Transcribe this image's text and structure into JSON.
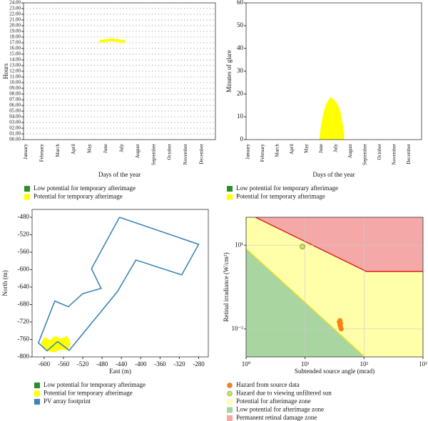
{
  "chart_data": [
    {
      "type": "scatter",
      "marker": "square",
      "xlabel": "Days of the year",
      "ylabel": "Hours",
      "categories": [
        "January",
        "February",
        "March",
        "April",
        "May",
        "June",
        "July",
        "August",
        "September",
        "October",
        "November",
        "December"
      ],
      "xlim": [
        0,
        12
      ],
      "ylim": [
        0,
        24
      ],
      "yticks": [
        {
          "value": 0,
          "label": "00.00"
        },
        {
          "value": 1,
          "label": "01.00"
        },
        {
          "value": 2,
          "label": "02.00"
        },
        {
          "value": 3,
          "label": "03.00"
        },
        {
          "value": 4,
          "label": "04.00"
        },
        {
          "value": 5,
          "label": "05.00"
        },
        {
          "value": 6,
          "label": "06.00"
        },
        {
          "value": 7,
          "label": "07.00"
        },
        {
          "value": 8,
          "label": "08.00"
        },
        {
          "value": 9,
          "label": "09.00"
        },
        {
          "value": 10,
          "label": "10.00"
        },
        {
          "value": 11,
          "label": "11.00"
        },
        {
          "value": 12,
          "label": "12.00"
        },
        {
          "value": 13,
          "label": "13.00"
        },
        {
          "value": 14,
          "label": "14.00"
        },
        {
          "value": 15,
          "label": "15.00"
        },
        {
          "value": 16,
          "label": "16.00"
        },
        {
          "value": 17,
          "label": "17.00"
        },
        {
          "value": 18,
          "label": "18.00"
        },
        {
          "value": 19,
          "label": "19.00"
        },
        {
          "value": 20,
          "label": "20.00"
        },
        {
          "value": 21,
          "label": "21.00"
        },
        {
          "value": 22,
          "label": "22.00"
        },
        {
          "value": 23,
          "label": "23.00"
        },
        {
          "value": 24,
          "label": "24.00"
        }
      ],
      "grid": "dots",
      "series": [
        {
          "name": "Low potential for temporary afterimage",
          "color": "#2e8b2e",
          "x": [],
          "y": []
        },
        {
          "name": "Potential for temporary afterimage",
          "color": "#ffff00",
          "x": [
            4.8,
            4.9,
            5.0,
            5.1,
            5.2,
            5.3,
            5.4,
            5.5,
            5.6,
            5.7,
            5.8,
            5.9,
            6.0,
            6.1,
            6.2,
            6.3
          ],
          "y": [
            17.2,
            17.3,
            17.3,
            17.4,
            17.4,
            17.4,
            17.5,
            17.5,
            17.5,
            17.4,
            17.4,
            17.4,
            17.3,
            17.3,
            17.3,
            17.2
          ]
        }
      ]
    },
    {
      "type": "area",
      "xlabel": "Days of the year",
      "ylabel": "Minutes of glare",
      "categories": [
        "January",
        "February",
        "March",
        "April",
        "May",
        "June",
        "July",
        "August",
        "September",
        "October",
        "November",
        "December"
      ],
      "xlim": [
        0,
        12
      ],
      "ylim": [
        0,
        60
      ],
      "yticks": [
        0,
        10,
        20,
        30,
        40,
        50,
        60
      ],
      "series": [
        {
          "name": "Low potential for temporary afterimage",
          "color": "#2e8b2e",
          "x": [],
          "values": []
        },
        {
          "name": "Potential for temporary afterimage",
          "color": "#ffff00",
          "x": [
            5.0,
            5.1,
            5.2,
            5.3,
            5.4,
            5.5,
            5.6,
            5.7,
            5.8,
            5.9,
            6.0,
            6.1,
            6.2,
            6.3,
            6.4,
            6.5,
            6.6,
            6.7
          ],
          "values": [
            0,
            5,
            9,
            12,
            14,
            16,
            17,
            18,
            18.5,
            18,
            17.5,
            17,
            16,
            15,
            13,
            11,
            7,
            3
          ]
        }
      ]
    },
    {
      "type": "line",
      "xlabel": "East (m)",
      "ylabel": "North (m)",
      "xlim": [
        -625,
        -260
      ],
      "ylim": [
        -800,
        -462
      ],
      "xticks": [
        -600,
        -560,
        -520,
        -480,
        -440,
        -400,
        -360,
        -320,
        -280
      ],
      "yticks": [
        -800,
        -760,
        -720,
        -680,
        -640,
        -600,
        -560,
        -520,
        -480
      ],
      "series": [
        {
          "name": "Low potential for temporary afterimage",
          "color": "#2e8b2e",
          "fill": true,
          "x": [],
          "y": []
        },
        {
          "name": "Potential for temporary afterimage",
          "color": "#ffff00",
          "fill": true,
          "x": [
            -607,
            -598,
            -588,
            -578,
            -565,
            -552,
            -545,
            -552,
            -565,
            -580,
            -596
          ],
          "y": [
            -768,
            -754,
            -762,
            -752,
            -758,
            -752,
            -770,
            -785,
            -783,
            -790,
            -786
          ]
        },
        {
          "name": "PV array footprint",
          "color": "#3a86b8",
          "fill": false,
          "x": [
            -444,
            -280,
            -315,
            -410,
            -448,
            -548,
            -572,
            -594,
            -612,
            -578,
            -550,
            -520,
            -482,
            -502,
            -444
          ],
          "y": [
            -480,
            -542,
            -612,
            -578,
            -650,
            -785,
            -765,
            -786,
            -768,
            -672,
            -685,
            -655,
            -643,
            -598,
            -480
          ]
        }
      ]
    },
    {
      "type": "scatter",
      "marker": "circle",
      "xlabel": "Subtended source angle (mrad)",
      "ylabel": "Retinal irradiance (W/cm²)",
      "xscale": "log",
      "yscale": "log",
      "xlim": [
        1,
        1000
      ],
      "ylim": [
        0.001,
        100
      ],
      "xticks": [
        {
          "value": 1,
          "label": "10⁰"
        },
        {
          "value": 10,
          "label": "10¹"
        },
        {
          "value": 100,
          "label": "10²"
        },
        {
          "value": 1000,
          "label": "10³"
        }
      ],
      "yticks": [
        {
          "value": 10,
          "label": "10¹"
        },
        {
          "value": 0.01,
          "label": "10⁻²"
        }
      ],
      "grid": true,
      "series": [
        {
          "name": "Hazard from source data",
          "color": "#ff7f0e",
          "x": [
            38,
            39,
            40,
            41,
            40,
            39
          ],
          "y": [
            0.018,
            0.014,
            0.012,
            0.01,
            0.016,
            0.02
          ]
        },
        {
          "name": "Hazard due to viewing unfiltered sun",
          "color": "#c8e64b",
          "x": [
            9.0
          ],
          "y": [
            8.9
          ]
        },
        {
          "name": "Potential for afterimage zone",
          "color": "#ffffaa",
          "zone": "all",
          "x": [],
          "y": []
        },
        {
          "name": "Low potential for afterimage zone",
          "color": "#a8d5a0",
          "zone": "below",
          "line": "#f0e030",
          "x": [
            1,
            98
          ],
          "y": [
            7.5,
            0.0011
          ]
        },
        {
          "name": "Permanent retinal damage zone",
          "color": "#f4a8a8",
          "zone": "above",
          "line": "#e02020",
          "x": [
            1.44,
            110,
            1000
          ],
          "y": [
            100,
            1.14,
            1.14
          ]
        }
      ]
    }
  ]
}
